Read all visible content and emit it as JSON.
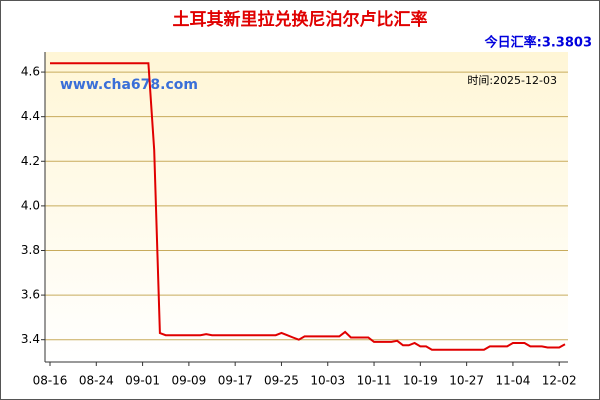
{
  "chart_data": {
    "type": "line",
    "title": "土耳其新里拉兑换尼泊尔卢比汇率",
    "subtitle": "今日汇率:3.3803",
    "watermark": "www.cha678.com",
    "annotation": "时间:2025-12-03",
    "categories": [
      "08-16",
      null,
      null,
      null,
      null,
      null,
      null,
      null,
      "08-24",
      null,
      null,
      null,
      null,
      null,
      null,
      null,
      "09-01",
      null,
      null,
      null,
      null,
      null,
      null,
      null,
      "09-09",
      null,
      null,
      null,
      null,
      null,
      null,
      null,
      "09-17",
      null,
      null,
      null,
      null,
      null,
      null,
      null,
      "09-25",
      null,
      null,
      null,
      null,
      null,
      null,
      null,
      "10-03",
      null,
      null,
      null,
      null,
      null,
      null,
      null,
      "10-11",
      null,
      null,
      null,
      null,
      null,
      null,
      null,
      "10-19",
      null,
      null,
      null,
      null,
      null,
      null,
      null,
      "10-27",
      null,
      null,
      null,
      null,
      null,
      null,
      null,
      "11-04",
      null,
      null,
      null,
      null,
      null,
      null,
      null,
      "12-02",
      null
    ],
    "values": [
      4.64,
      4.64,
      4.64,
      4.64,
      4.64,
      4.64,
      4.64,
      4.64,
      4.64,
      4.64,
      4.64,
      4.64,
      4.64,
      4.64,
      4.64,
      4.64,
      4.64,
      4.64,
      4.25,
      3.43,
      3.42,
      3.42,
      3.42,
      3.42,
      3.42,
      3.42,
      3.42,
      3.425,
      3.42,
      3.42,
      3.42,
      3.42,
      3.42,
      3.42,
      3.42,
      3.42,
      3.42,
      3.42,
      3.42,
      3.42,
      3.43,
      3.42,
      3.41,
      3.4,
      3.415,
      3.415,
      3.415,
      3.415,
      3.415,
      3.415,
      3.415,
      3.435,
      3.41,
      3.41,
      3.41,
      3.41,
      3.39,
      3.39,
      3.39,
      3.39,
      3.395,
      3.375,
      3.375,
      3.385,
      3.37,
      3.37,
      3.355,
      3.355,
      3.355,
      3.355,
      3.355,
      3.355,
      3.355,
      3.355,
      3.355,
      3.355,
      3.37,
      3.37,
      3.37,
      3.37,
      3.385,
      3.385,
      3.385,
      3.37,
      3.37,
      3.37,
      3.365,
      3.365,
      3.365,
      3.38
    ],
    "color": "#e00000",
    "ylim": [
      3.3,
      4.69
    ],
    "yticks": [
      3.4,
      3.6,
      3.8,
      {
        "value": 4,
        "label": "4.0"
      },
      4.2,
      4.4,
      4.6
    ],
    "grid": true
  }
}
